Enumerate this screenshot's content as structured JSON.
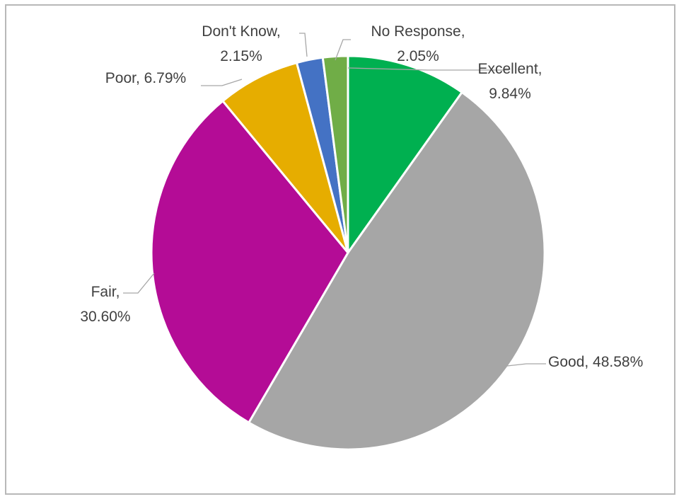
{
  "chart_data": {
    "type": "pie",
    "title": "",
    "legend": false,
    "slices": [
      {
        "label": "Excellent",
        "value": 9.84,
        "value_text": "9.84%",
        "color": "#00b050"
      },
      {
        "label": "Good",
        "value": 48.58,
        "value_text": "48.58%",
        "color": "#a6a6a6"
      },
      {
        "label": "Fair",
        "value": 30.6,
        "value_text": "30.60%",
        "color": "#b40c96"
      },
      {
        "label": "Poor",
        "value": 6.79,
        "value_text": "6.79%",
        "color": "#e6ad00"
      },
      {
        "label": "Don't Know",
        "value": 2.15,
        "value_text": "2.15%",
        "color": "#4472c4"
      },
      {
        "label": "No Response",
        "value": 2.05,
        "value_text": "2.05%",
        "color": "#70ad47"
      }
    ]
  }
}
